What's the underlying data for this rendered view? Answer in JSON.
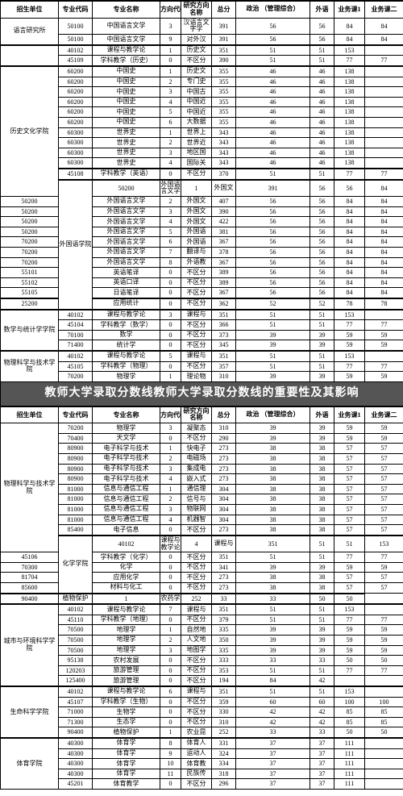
{
  "headers": [
    "招生单位",
    "专业代码",
    "专业名称",
    "方向代码",
    "研究方向名称",
    "总分",
    "政治\n（管理综合）",
    "外语",
    "业务课1",
    "业务课二"
  ],
  "banner": "教师大学录取分数线教师大学录取分数线的重要性及其影响",
  "group1": [
    {
      "unit": "语言研究所",
      "unitSpan": 2,
      "code": "50100",
      "name": "中国语言文学",
      "dir": "3",
      "dname": "汉语言文字学",
      "t": "391",
      "p": "56",
      "f": "56",
      "b1": "84",
      "b2": "84"
    },
    {
      "code": "50100",
      "name": "中国语言文学",
      "dir": "9",
      "dname": "对外汉",
      "t": "391",
      "p": "56",
      "f": "56",
      "b1": "84",
      "b2": "84"
    },
    {
      "unit": "",
      "unitSpan": 2,
      "code": "40102",
      "name": "课程与教学论",
      "dir": "1",
      "dname": "历史文",
      "t": "351",
      "p": "51",
      "f": "51",
      "b1": "153",
      "b2": "",
      "top": true
    },
    {
      "code": "45109",
      "name": "学科教学（历史）",
      "dir": "0",
      "dname": "不区分",
      "t": "390",
      "p": "51",
      "f": "51",
      "b1": "77",
      "b2": "77"
    },
    {
      "unit": "历史文化学院",
      "unitSpan": 12,
      "code": "60200",
      "name": "中国史",
      "dir": "1",
      "dname": "历史文",
      "t": "355",
      "p": "46",
      "f": "46",
      "b1": "138",
      "b2": "",
      "top": true
    },
    {
      "code": "60200",
      "name": "中国史",
      "dir": "2",
      "dname": "专门史",
      "t": "355",
      "p": "46",
      "f": "46",
      "b1": "138",
      "b2": ""
    },
    {
      "code": "60200",
      "name": "中国史",
      "dir": "3",
      "dname": "中国古",
      "t": "355",
      "p": "46",
      "f": "46",
      "b1": "138",
      "b2": ""
    },
    {
      "code": "60200",
      "name": "中国史",
      "dir": "4",
      "dname": "中国近",
      "t": "355",
      "p": "46",
      "f": "46",
      "b1": "138",
      "b2": ""
    },
    {
      "code": "60200",
      "name": "中国史",
      "dir": "5",
      "dname": "中国近",
      "t": "355",
      "p": "46",
      "f": "46",
      "b1": "138",
      "b2": ""
    },
    {
      "code": "60200",
      "name": "中国史",
      "dir": "6",
      "dname": "大数据",
      "t": "355",
      "p": "46",
      "f": "46",
      "b1": "138",
      "b2": ""
    },
    {
      "code": "60300",
      "name": "世界史",
      "dir": "1",
      "dname": "世界上",
      "t": "343",
      "p": "46",
      "f": "46",
      "b1": "138",
      "b2": ""
    },
    {
      "code": "60300",
      "name": "世界史",
      "dir": "2",
      "dname": "世界近",
      "t": "343",
      "p": "46",
      "f": "46",
      "b1": "138",
      "b2": ""
    },
    {
      "code": "60300",
      "name": "世界史",
      "dir": "3",
      "dname": "地区国",
      "t": "343",
      "p": "46",
      "f": "46",
      "b1": "138",
      "b2": ""
    },
    {
      "code": "60300",
      "name": "世界史",
      "dir": "4",
      "dname": "国际关",
      "t": "343",
      "p": "46",
      "f": "46",
      "b1": "138",
      "b2": ""
    },
    {
      "code": "45108",
      "name": "学科教学（英语）",
      "dir": "0",
      "dname": "不区分",
      "t": "370",
      "p": "51",
      "f": "51",
      "b1": "77",
      "b2": "77",
      "top": true
    },
    {
      "unit": "外国语学院",
      "unitSpan": 12,
      "code": "50200",
      "name": "外国语言文学",
      "dir": "1",
      "dname": "外国文",
      "t": "391",
      "p": "56",
      "f": "56",
      "b1": "84",
      "b2": "84",
      "top": true
    },
    {
      "code": "50200",
      "name": "外国语言文学",
      "dir": "2",
      "dname": "外国文",
      "t": "407",
      "p": "56",
      "f": "56",
      "b1": "84",
      "b2": "84"
    },
    {
      "code": "50200",
      "name": "外国语言文学",
      "dir": "3",
      "dname": "外国文",
      "t": "390",
      "p": "56",
      "f": "56",
      "b1": "84",
      "b2": "84"
    },
    {
      "code": "50200",
      "name": "外国语言文学",
      "dir": "4",
      "dname": "外国文",
      "t": "422",
      "p": "56",
      "f": "56",
      "b1": "84",
      "b2": "84"
    },
    {
      "code": "50200",
      "name": "外国语言文学",
      "dir": "5",
      "dname": "外国语",
      "t": "381",
      "p": "56",
      "f": "56",
      "b1": "84",
      "b2": "84"
    },
    {
      "code": "70200",
      "name": "外国语言文学",
      "dir": "6",
      "dname": "外国语",
      "t": "367",
      "p": "56",
      "f": "56",
      "b1": "84",
      "b2": "84"
    },
    {
      "code": "70200",
      "name": "外国语言文学",
      "dir": "7",
      "dname": "翻译与",
      "t": "378",
      "p": "56",
      "f": "56",
      "b1": "84",
      "b2": "84"
    },
    {
      "code": "70200",
      "name": "外国语言文学",
      "dir": "8",
      "dname": "外语教",
      "t": "367",
      "p": "56",
      "f": "56",
      "b1": "84",
      "b2": "84"
    },
    {
      "code": "55101",
      "name": "英语笔译",
      "dir": "0",
      "dname": "不区分",
      "t": "389",
      "p": "56",
      "f": "56",
      "b1": "84",
      "b2": "84"
    },
    {
      "code": "55102",
      "name": "英语口译",
      "dir": "0",
      "dname": "不区分",
      "t": "389",
      "p": "56",
      "f": "56",
      "b1": "84",
      "b2": "84"
    },
    {
      "code": "55105",
      "name": "日语笔译",
      "dir": "0",
      "dname": "不区分",
      "t": "367",
      "p": "56",
      "f": "56",
      "b1": "84",
      "b2": "84"
    },
    {
      "code": "25200",
      "name": "应用统计",
      "dir": "0",
      "dname": "不区分",
      "t": "362",
      "p": "52",
      "f": "52",
      "b1": "78",
      "b2": "78",
      "top": true
    },
    {
      "unit": "数学与统计学学院",
      "unitSpan": 4,
      "code": "40102",
      "name": "课程与教学论",
      "dir": "3",
      "dname": "课程与",
      "t": "351",
      "p": "51",
      "f": "51",
      "b1": "153",
      "b2": "",
      "top": true
    },
    {
      "code": "45104",
      "name": "学科教学（数学）",
      "dir": "0",
      "dname": "不区分",
      "t": "366",
      "p": "51",
      "f": "51",
      "b1": "77",
      "b2": "77"
    },
    {
      "code": "70100",
      "name": "数学",
      "dir": "0",
      "dname": "不区分",
      "t": "373",
      "p": "39",
      "f": "39",
      "b1": "59",
      "b2": "59"
    },
    {
      "code": "71400",
      "name": "统计学",
      "dir": "0",
      "dname": "不区分",
      "t": "345",
      "p": "39",
      "f": "39",
      "b1": "59",
      "b2": "59"
    },
    {
      "unit": "物理科学与技术学院",
      "unitSpan": 3,
      "code": "40102",
      "name": "课程与教学论",
      "dir": "5",
      "dname": "课程与",
      "t": "351",
      "p": "51",
      "f": "51",
      "b1": "153",
      "b2": "",
      "top": true
    },
    {
      "code": "45105",
      "name": "学科教学（物理）",
      "dir": "0",
      "dname": "不区分",
      "t": "357",
      "p": "51",
      "f": "51",
      "b1": "77",
      "b2": "77"
    },
    {
      "code": "70200",
      "name": "物理学",
      "dir": "1",
      "dname": "理论物",
      "t": "310",
      "p": "39",
      "f": "39",
      "b1": "59",
      "b2": "59"
    }
  ],
  "group2": [
    {
      "unit": "物理科学与技术学院",
      "unitSpan": 12,
      "code": "70200",
      "name": "物理学",
      "dir": "3",
      "dname": "凝聚态",
      "t": "310",
      "p": "39",
      "f": "39",
      "b1": "59",
      "b2": "59"
    },
    {
      "code": "70400",
      "name": "天文学",
      "dir": "0",
      "dname": "不区分",
      "t": "290",
      "p": "39",
      "f": "39",
      "b1": "59",
      "b2": "59"
    },
    {
      "code": "80900",
      "name": "电子科学与技术",
      "dir": "1",
      "dname": "快电子",
      "t": "273",
      "p": "38",
      "f": "38",
      "b1": "57",
      "b2": "57"
    },
    {
      "code": "80900",
      "name": "电子科学与技术",
      "dir": "2",
      "dname": "电磁场",
      "t": "273",
      "p": "38",
      "f": "38",
      "b1": "57",
      "b2": "57"
    },
    {
      "code": "80900",
      "name": "电子科学与技术",
      "dir": "3",
      "dname": "集成电",
      "t": "273",
      "p": "38",
      "f": "38",
      "b1": "57",
      "b2": "57"
    },
    {
      "code": "80900",
      "name": "电子科学与技术",
      "dir": "4",
      "dname": "嵌入式",
      "t": "273",
      "p": "38",
      "f": "38",
      "b1": "57",
      "b2": "57"
    },
    {
      "code": "81000",
      "name": "信息与通信工程",
      "dir": "1",
      "dname": "通信理",
      "t": "304",
      "p": "38",
      "f": "38",
      "b1": "57",
      "b2": "57"
    },
    {
      "code": "81000",
      "name": "信息与通信工程",
      "dir": "2",
      "dname": "信号与",
      "t": "304",
      "p": "38",
      "f": "38",
      "b1": "57",
      "b2": "57"
    },
    {
      "code": "81000",
      "name": "信息与通信工程",
      "dir": "3",
      "dname": "物联网",
      "t": "304",
      "p": "38",
      "f": "38",
      "b1": "57",
      "b2": "57"
    },
    {
      "code": "81000",
      "name": "信息与通信工程",
      "dir": "4",
      "dname": "机器智",
      "t": "304",
      "p": "38",
      "f": "38",
      "b1": "57",
      "b2": "57"
    },
    {
      "code": "85400",
      "name": "电子信息",
      "dir": "0",
      "dname": "不区分",
      "t": "273",
      "p": "38",
      "f": "38",
      "b1": "57",
      "b2": "57"
    },
    {
      "unit": "化学学院",
      "unitSpan": 5,
      "code": "40102",
      "name": "课程与教学论",
      "dir": "4",
      "dname": "课程与",
      "t": "351",
      "p": "51",
      "f": "51",
      "b1": "153",
      "b2": "",
      "top": true
    },
    {
      "code": "45106",
      "name": "学科教学（化学）",
      "dir": "0",
      "dname": "不区分",
      "t": "351",
      "p": "51",
      "f": "51",
      "b1": "77",
      "b2": "77"
    },
    {
      "code": "70300",
      "name": "化学",
      "dir": "0",
      "dname": "不区分",
      "t": "341",
      "p": "39",
      "f": "39",
      "b1": "59",
      "b2": "59"
    },
    {
      "code": "81704",
      "name": "应用化学",
      "dir": "0",
      "dname": "不区分",
      "t": "273",
      "p": "38",
      "f": "38",
      "b1": "57",
      "b2": "57"
    },
    {
      "code": "85600",
      "name": "材料与化工",
      "dir": "0",
      "dname": "不区分",
      "t": "273",
      "p": "38",
      "f": "38",
      "b1": "57",
      "b2": "57"
    },
    {
      "code": "90400",
      "name": "植物保护",
      "dir": "1",
      "dname": "农药学",
      "t": "252",
      "p": "33",
      "f": "33",
      "b1": "50",
      "b2": "50",
      "top": true
    },
    {
      "unit": "城市与环境科学学院",
      "unitSpan": 8,
      "code": "40102",
      "name": "课程与教学论",
      "dir": "7",
      "dname": "课程与",
      "t": "351",
      "p": "51",
      "f": "51",
      "b1": "153",
      "b2": "",
      "top": true
    },
    {
      "code": "45110",
      "name": "学科教学（地理）",
      "dir": "0",
      "dname": "不区分",
      "t": "379",
      "p": "51",
      "f": "51",
      "b1": "77",
      "b2": "77"
    },
    {
      "code": "70500",
      "name": "地理学",
      "dir": "1",
      "dname": "自然地",
      "t": "335",
      "p": "39",
      "f": "39",
      "b1": "59",
      "b2": "59"
    },
    {
      "code": "70500",
      "name": "地理学",
      "dir": "2",
      "dname": "人文地",
      "t": "350",
      "p": "39",
      "f": "39",
      "b1": "59",
      "b2": "59"
    },
    {
      "code": "70500",
      "name": "地理学",
      "dir": "3",
      "dname": "地图学",
      "t": "335",
      "p": "39",
      "f": "39",
      "b1": "59",
      "b2": "59"
    },
    {
      "code": "95138",
      "name": "农村发展",
      "dir": "0",
      "dname": "不区分",
      "t": "333",
      "p": "33",
      "f": "33",
      "b1": "50",
      "b2": "50"
    },
    {
      "code": "120203",
      "name": "旅游管理",
      "dir": "0",
      "dname": "不区分",
      "t": "353",
      "p": "51",
      "f": "51",
      "b1": "77",
      "b2": "77"
    },
    {
      "code": "125400",
      "name": "旅游管理",
      "dir": "0",
      "dname": "不区分",
      "t": "194",
      "p": "84",
      "f": "42",
      "b1": "",
      "b2": ""
    },
    {
      "unit": "生命科学学院",
      "unitSpan": 5,
      "code": "40102",
      "name": "课程与教学论",
      "dir": "6",
      "dname": "课程与",
      "t": "351",
      "p": "51",
      "f": "51",
      "b1": "153",
      "b2": "",
      "top": true
    },
    {
      "code": "45107",
      "name": "学科教学（生物）",
      "dir": "0",
      "dname": "不区分",
      "t": "359",
      "p": "60",
      "f": "60",
      "b1": "100",
      "b2": "100"
    },
    {
      "code": "71000",
      "name": "生物学",
      "dir": "0",
      "dname": "不区分",
      "t": "330",
      "p": "42",
      "f": "42",
      "b1": "85",
      "b2": "85"
    },
    {
      "code": "71300",
      "name": "生态学",
      "dir": "0",
      "dname": "不区分",
      "t": "310",
      "p": "42",
      "f": "42",
      "b1": "85",
      "b2": "85"
    },
    {
      "code": "90400",
      "name": "植物保护",
      "dir": "1",
      "dname": "农业昆",
      "t": "252",
      "p": "33",
      "f": "33",
      "b1": "50",
      "b2": "50"
    },
    {
      "unit": "体育学院",
      "unitSpan": 5,
      "code": "40300",
      "name": "体育学",
      "dir": "8",
      "dname": "体育人",
      "t": "331",
      "p": "37",
      "f": "37",
      "b1": "111",
      "b2": "",
      "top": true
    },
    {
      "code": "40300",
      "name": "体育学",
      "dir": "9",
      "dname": "运动人",
      "t": "324",
      "p": "37",
      "f": "37",
      "b1": "111",
      "b2": ""
    },
    {
      "code": "40300",
      "name": "体育学",
      "dir": "10",
      "dname": "体育教",
      "t": "334",
      "p": "37",
      "f": "37",
      "b1": "111",
      "b2": ""
    },
    {
      "code": "40300",
      "name": "体育学",
      "dir": "11",
      "dname": "民族传",
      "t": "318",
      "p": "37",
      "f": "37",
      "b1": "111",
      "b2": ""
    },
    {
      "code": "45201",
      "name": "体育教学",
      "dir": "0",
      "dname": "不区分",
      "t": "296",
      "p": "37",
      "f": "37",
      "b1": "111",
      "b2": ""
    }
  ]
}
